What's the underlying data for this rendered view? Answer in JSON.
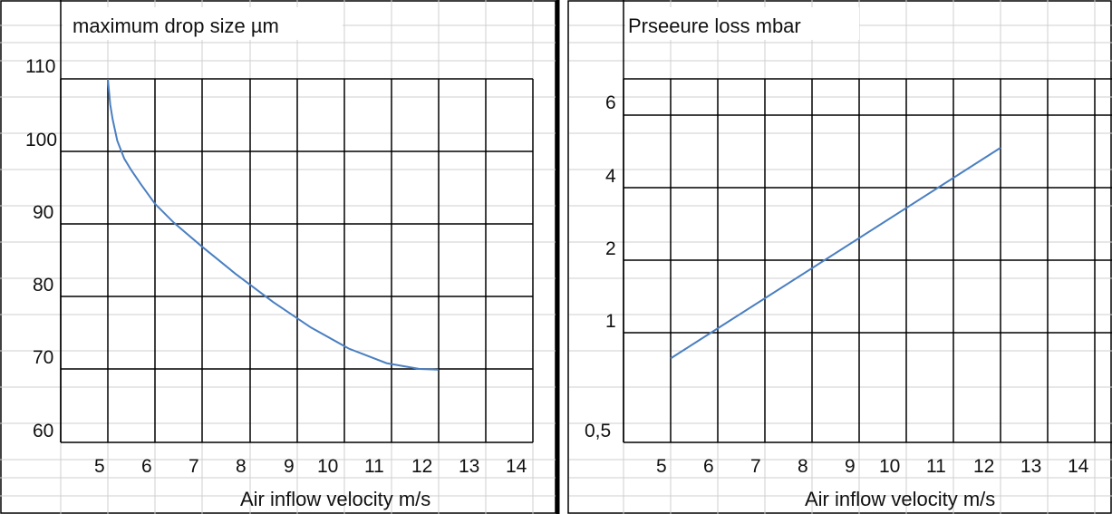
{
  "chart_data": [
    {
      "type": "line",
      "title": "maximum drop size µm",
      "xlabel": "Air inflow velocity m/s",
      "ylabel": "",
      "x_ticks": [
        "5",
        "6",
        "7",
        "8",
        "9",
        "10",
        "11",
        "12",
        "13",
        "14"
      ],
      "y_ticks": [
        "60",
        "70",
        "80",
        "90",
        "100",
        "110"
      ],
      "xlim": [
        4.5,
        14.5
      ],
      "ylim": [
        60,
        110
      ],
      "y_scale": "linear",
      "grid": true,
      "series": [
        {
          "color": "#4a7fc1",
          "x": [
            5.0,
            5.05,
            5.1,
            5.2,
            5.35,
            5.5,
            5.7,
            6.0,
            6.4,
            7.0,
            7.7,
            8.5,
            9.3,
            10.1,
            10.9,
            11.6,
            12.0
          ],
          "y": [
            110,
            106.5,
            104.5,
            101.5,
            99.0,
            97.4,
            95.5,
            92.8,
            90.2,
            86.9,
            83.2,
            79.3,
            75.8,
            72.9,
            70.9,
            70.1,
            70.0
          ]
        }
      ]
    },
    {
      "type": "line",
      "title": "Prseeure loss mbar",
      "xlabel": "Air inflow velocity m/s",
      "ylabel": "",
      "x_ticks": [
        "5",
        "6",
        "7",
        "8",
        "9",
        "10",
        "11",
        "12",
        "13",
        "14"
      ],
      "y_ticks": [
        "0,5",
        "1",
        "2",
        "4",
        "6"
      ],
      "xlim": [
        4.5,
        14.5
      ],
      "ylim": [
        0.5,
        6
      ],
      "y_scale": "log",
      "grid": true,
      "series": [
        {
          "color": "#4a7fc1",
          "x": [
            5.0,
            12.0
          ],
          "y": [
            0.85,
            5.0
          ]
        }
      ]
    }
  ]
}
